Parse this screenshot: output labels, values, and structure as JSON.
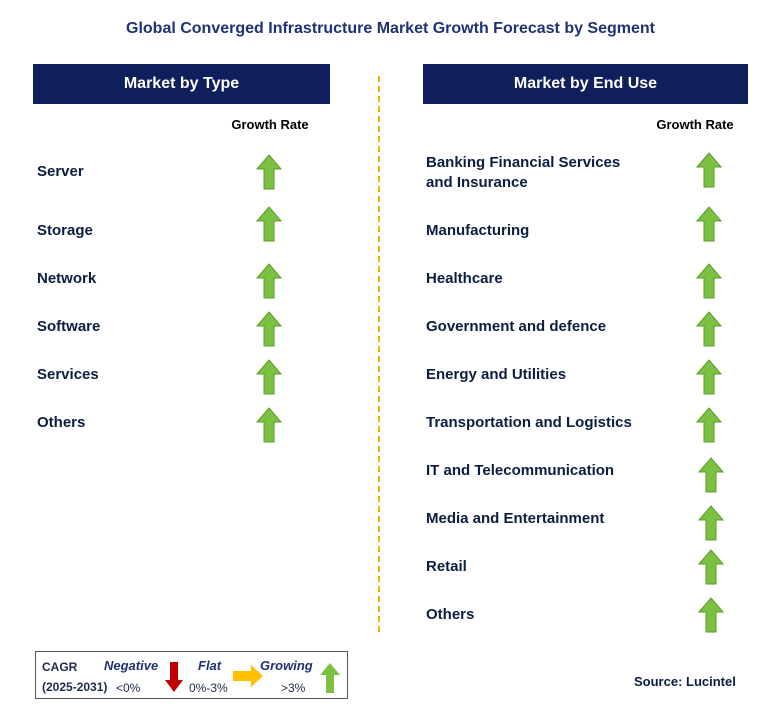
{
  "title": "Global Converged Infrastructure Market Growth Forecast by Segment",
  "left": {
    "header": "Market by Type",
    "growth_label": "Growth Rate",
    "items": [
      {
        "label": "Server",
        "trend": "growing"
      },
      {
        "label": "Storage",
        "trend": "growing"
      },
      {
        "label": "Network",
        "trend": "growing"
      },
      {
        "label": "Software",
        "trend": "growing"
      },
      {
        "label": "Services",
        "trend": "growing"
      },
      {
        "label": "Others",
        "trend": "growing"
      }
    ]
  },
  "right": {
    "header": "Market by End Use",
    "growth_label": "Growth Rate",
    "items": [
      {
        "label": "Banking Financial Services and Insurance",
        "trend": "growing"
      },
      {
        "label": "Manufacturing",
        "trend": "growing"
      },
      {
        "label": "Healthcare",
        "trend": "growing"
      },
      {
        "label": "Government and defence",
        "trend": "growing"
      },
      {
        "label": "Energy and Utilities",
        "trend": "growing"
      },
      {
        "label": "Transportation and Logistics",
        "trend": "growing"
      },
      {
        "label": "IT and Telecommunication",
        "trend": "growing"
      },
      {
        "label": "Media and Entertainment",
        "trend": "growing"
      },
      {
        "label": "Retail",
        "trend": "growing"
      },
      {
        "label": "Others",
        "trend": "growing"
      }
    ]
  },
  "legend": {
    "cagr_label": "CAGR",
    "period": "(2025-2031)",
    "negative_label": "Negative",
    "negative_range": "<0%",
    "flat_label": "Flat",
    "flat_range": "0%-3%",
    "growing_label": "Growing",
    "growing_range": ">3%"
  },
  "source": "Source: Lucintel",
  "colors": {
    "header_bg": "#0e1f5b",
    "growing_arrow": "#7dc142",
    "negative_arrow": "#c00000",
    "flat_arrow": "#ffc000",
    "divider": "#f2b600"
  }
}
